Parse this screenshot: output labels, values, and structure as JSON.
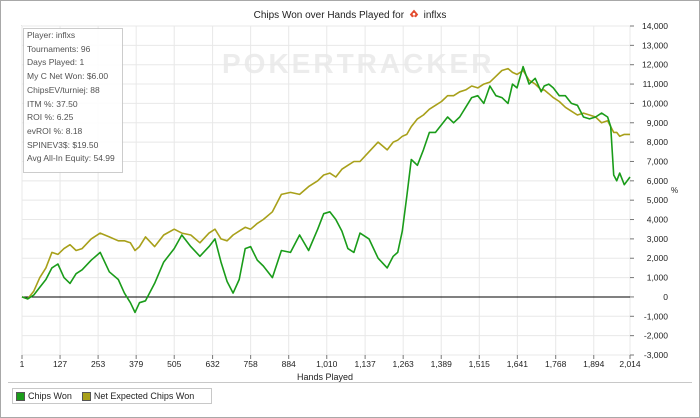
{
  "title": {
    "prefix": "Chips Won over Hands Played for",
    "player": "inflxs"
  },
  "watermark": "POKERTRACKER",
  "stats": [
    "Player: inflxs",
    "Tournaments: 96",
    "Days Played: 1",
    "My C Net Won: $6.00",
    "ChipsEV/turniej: 88",
    "ITM %: 37.50",
    "ROI %: 6.25",
    "evROI %: 8.18",
    "SPINEV3$: $19.50",
    "Avg All-In Equity: 54.99"
  ],
  "colors": {
    "chips_won": "#1a9c1a",
    "expected": "#a8a01a",
    "zero_line": "#000000",
    "grid": "#e8e8e8"
  },
  "chart_data": {
    "type": "line",
    "xlabel": "Hands Played",
    "ylabel": "%",
    "xlim": [
      1,
      2014
    ],
    "ylim": [
      -3000,
      14000
    ],
    "x_ticks": [
      "1",
      "127",
      "253",
      "379",
      "505",
      "632",
      "758",
      "884",
      "1,010",
      "1,137",
      "1,263",
      "1,389",
      "1,515",
      "1,641",
      "1,768",
      "1,894",
      "2,014"
    ],
    "x_tick_values": [
      1,
      127,
      253,
      379,
      505,
      632,
      758,
      884,
      1010,
      1137,
      1263,
      1389,
      1515,
      1641,
      1768,
      1894,
      2014
    ],
    "y_ticks": [
      "-3,000",
      "-2,000",
      "-1,000",
      "0",
      "1,000",
      "2,000",
      "3,000",
      "4,000",
      "5,000",
      "6,000",
      "7,000",
      "8,000",
      "9,000",
      "10,000",
      "11,000",
      "12,000",
      "13,000",
      "14,000"
    ],
    "y_tick_values": [
      -3000,
      -2000,
      -1000,
      0,
      1000,
      2000,
      3000,
      4000,
      5000,
      6000,
      7000,
      8000,
      9000,
      10000,
      11000,
      12000,
      13000,
      14000
    ],
    "series": [
      {
        "name": "Chips Won",
        "color": "#1a9c1a",
        "x": [
          1,
          20,
          40,
          60,
          80,
          100,
          120,
          140,
          160,
          180,
          200,
          230,
          260,
          290,
          320,
          340,
          360,
          375,
          390,
          410,
          440,
          470,
          505,
          530,
          560,
          590,
          620,
          640,
          660,
          680,
          700,
          720,
          740,
          758,
          780,
          800,
          830,
          860,
          890,
          920,
          950,
          980,
          1000,
          1020,
          1040,
          1060,
          1080,
          1100,
          1120,
          1150,
          1180,
          1210,
          1230,
          1245,
          1260,
          1275,
          1290,
          1310,
          1330,
          1350,
          1370,
          1390,
          1410,
          1430,
          1450,
          1470,
          1490,
          1510,
          1530,
          1550,
          1570,
          1590,
          1610,
          1625,
          1640,
          1660,
          1680,
          1700,
          1720,
          1730,
          1745,
          1760,
          1780,
          1800,
          1820,
          1840,
          1860,
          1880,
          1900,
          1920,
          1940,
          1950,
          1960,
          1970,
          1980,
          1995,
          2014
        ],
        "y": [
          0,
          -100,
          100,
          500,
          900,
          1500,
          1700,
          1000,
          700,
          1200,
          1400,
          1900,
          2300,
          1300,
          900,
          200,
          -300,
          -800,
          -300,
          -200,
          700,
          1800,
          2500,
          3200,
          2600,
          2100,
          2600,
          3000,
          1800,
          800,
          200,
          900,
          2500,
          2600,
          1900,
          1600,
          1000,
          2400,
          2300,
          3200,
          2400,
          3500,
          4300,
          4400,
          4000,
          3400,
          2500,
          2300,
          3300,
          3000,
          2000,
          1500,
          2100,
          2300,
          3400,
          5200,
          7100,
          6800,
          7600,
          8500,
          8500,
          8900,
          9300,
          9000,
          9300,
          9800,
          10300,
          10400,
          10000,
          10900,
          10400,
          10300,
          10000,
          11000,
          10800,
          11900,
          11000,
          11300,
          10600,
          10900,
          11000,
          10800,
          10400,
          10400,
          10000,
          9900,
          9300,
          9200,
          9300,
          9500,
          9300,
          8800,
          6300,
          6000,
          6400,
          5800,
          6200
        ]
      },
      {
        "name": "Net Expected Chips Won",
        "color": "#a8a01a",
        "x": [
          1,
          20,
          40,
          60,
          80,
          100,
          120,
          140,
          160,
          180,
          200,
          230,
          260,
          290,
          320,
          340,
          360,
          375,
          390,
          410,
          440,
          470,
          505,
          530,
          560,
          590,
          620,
          640,
          660,
          680,
          700,
          720,
          740,
          758,
          780,
          800,
          830,
          860,
          890,
          920,
          950,
          980,
          1000,
          1020,
          1040,
          1060,
          1080,
          1100,
          1120,
          1150,
          1180,
          1210,
          1230,
          1245,
          1260,
          1275,
          1290,
          1310,
          1330,
          1350,
          1370,
          1390,
          1410,
          1430,
          1450,
          1470,
          1490,
          1510,
          1530,
          1550,
          1570,
          1590,
          1610,
          1625,
          1640,
          1660,
          1680,
          1700,
          1720,
          1730,
          1745,
          1760,
          1780,
          1800,
          1820,
          1840,
          1860,
          1880,
          1900,
          1920,
          1940,
          1950,
          1960,
          1970,
          1980,
          1995,
          2014
        ],
        "y": [
          0,
          -100,
          300,
          1000,
          1500,
          2300,
          2200,
          2500,
          2700,
          2400,
          2500,
          3000,
          3300,
          3100,
          2900,
          2900,
          2800,
          2400,
          2600,
          3100,
          2600,
          3200,
          3500,
          3300,
          3200,
          2800,
          3300,
          3500,
          3000,
          2900,
          3200,
          3400,
          3600,
          3500,
          3800,
          4000,
          4400,
          5300,
          5400,
          5300,
          5700,
          6000,
          6300,
          6400,
          6200,
          6600,
          6800,
          7000,
          7000,
          7500,
          8000,
          7600,
          8000,
          8100,
          8300,
          8400,
          8800,
          9200,
          9400,
          9700,
          9900,
          10100,
          10400,
          10400,
          10600,
          10700,
          10900,
          10800,
          11000,
          11100,
          11400,
          11700,
          11800,
          11600,
          11500,
          11700,
          11200,
          11000,
          10700,
          10700,
          10500,
          10300,
          10100,
          9800,
          9600,
          9400,
          9500,
          9400,
          9300,
          9000,
          9100,
          8800,
          8500,
          8500,
          8300,
          8400,
          8400
        ]
      }
    ]
  },
  "legend": {
    "items": [
      "Chips Won",
      "Net Expected Chips Won"
    ]
  }
}
